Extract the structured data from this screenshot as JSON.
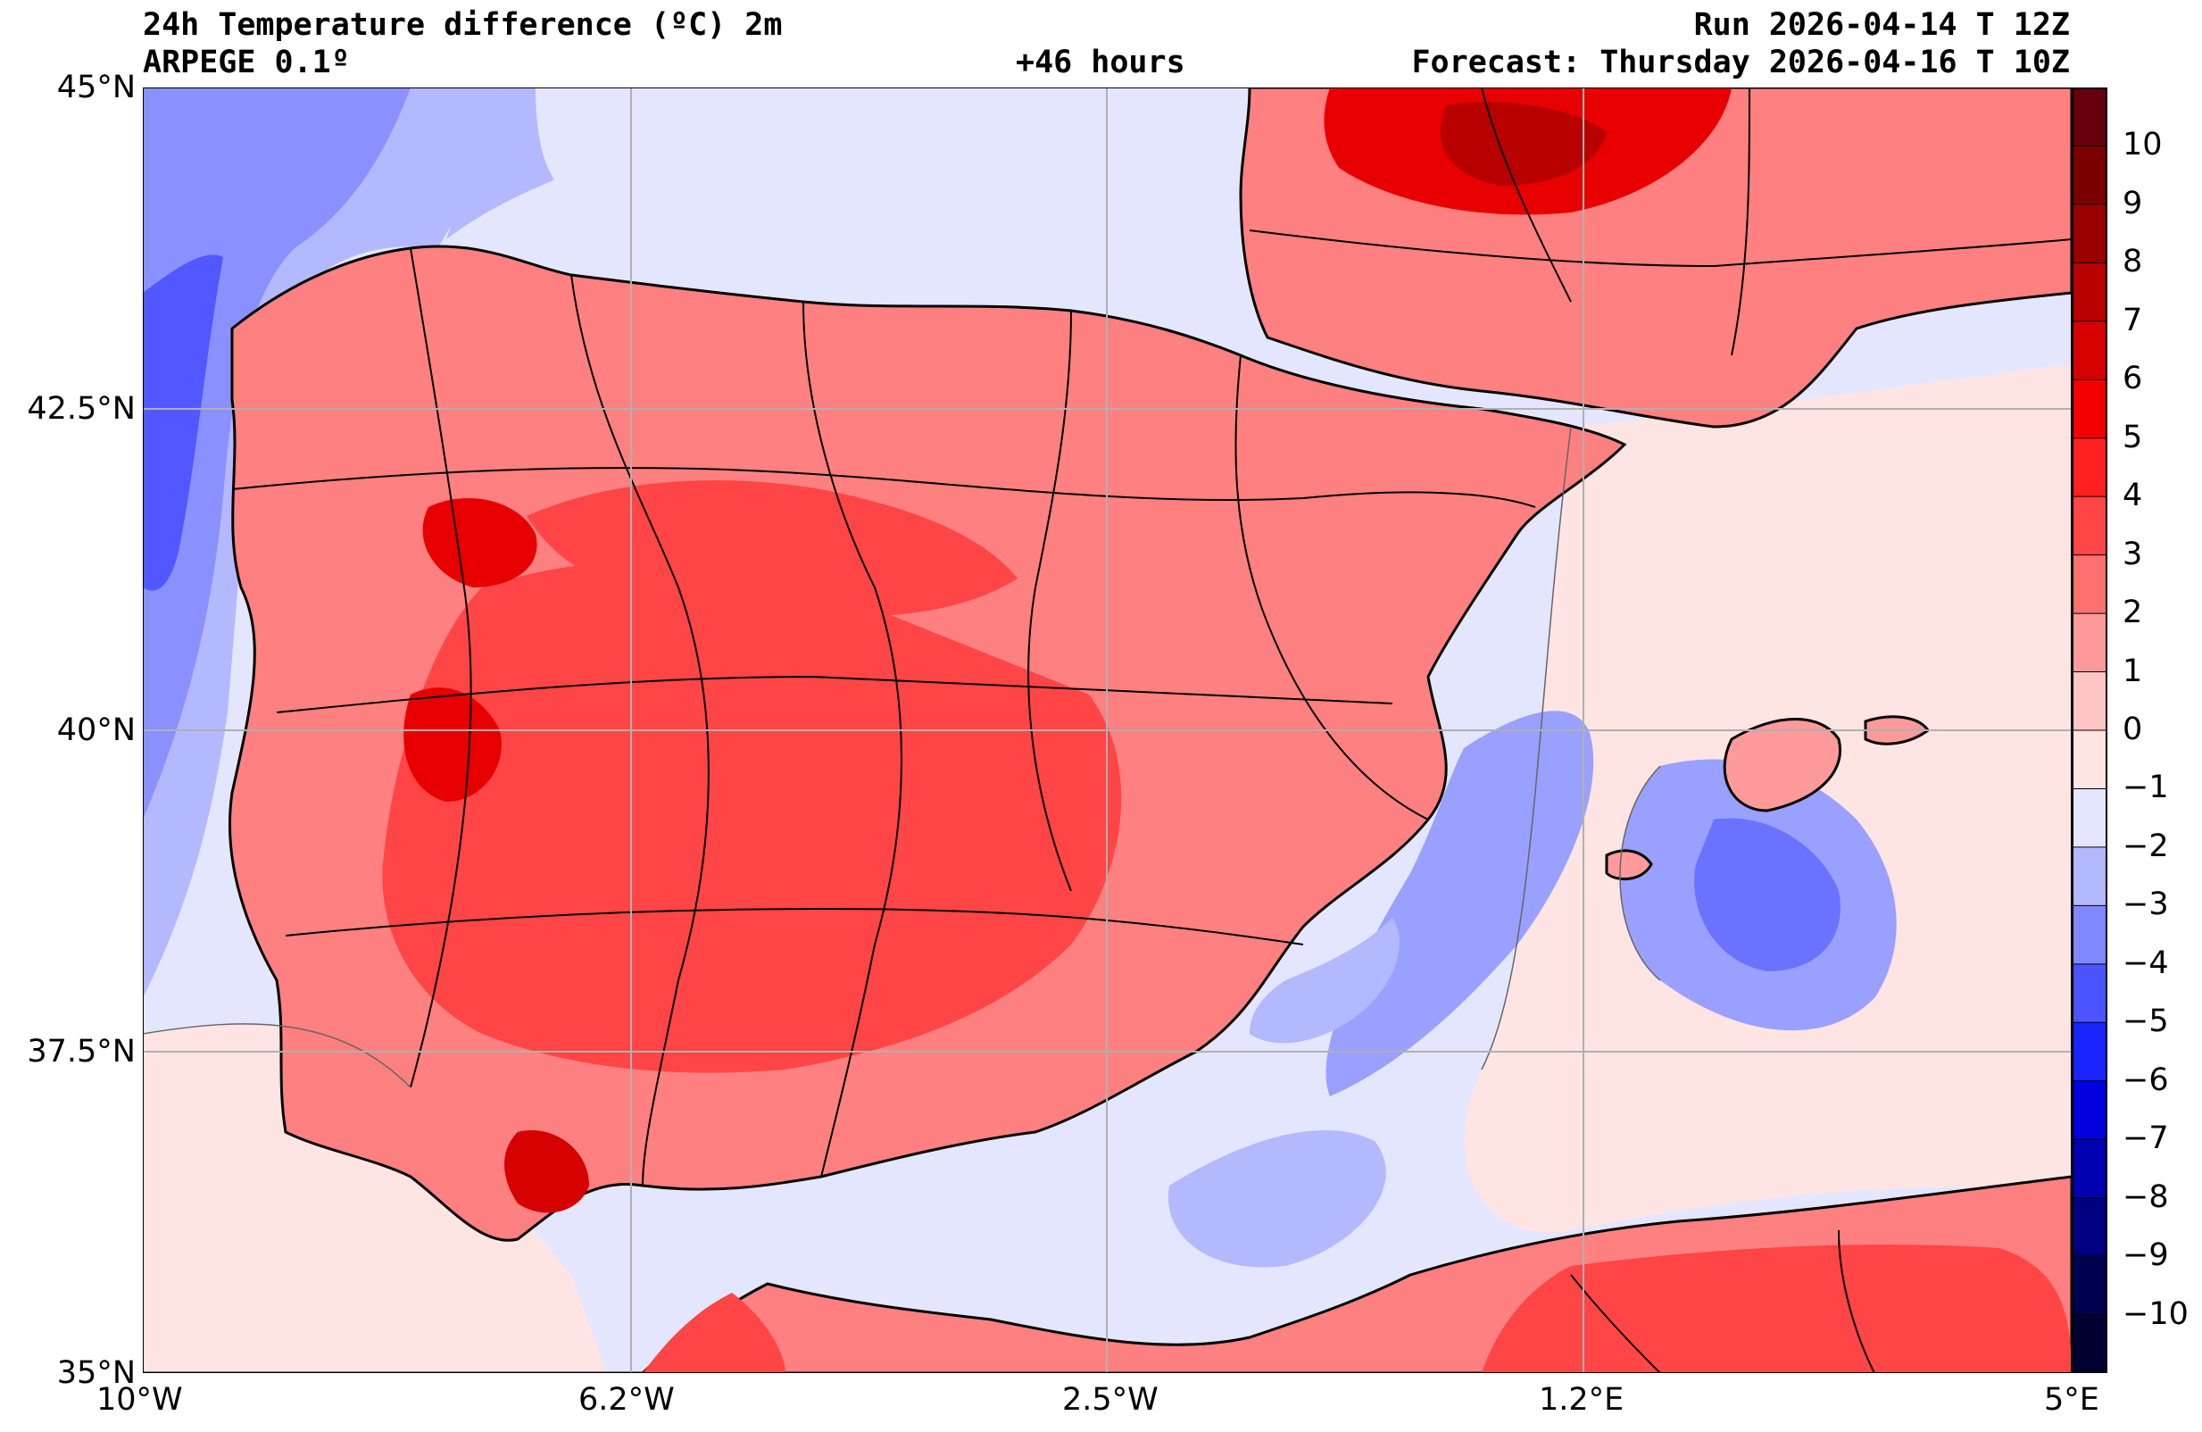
{
  "header": {
    "title": "24h Temperature difference (ºC) 2m",
    "model": "ARPEGE 0.1º",
    "lead_time": "+46 hours",
    "run": "Run 2026-04-14 T 12Z",
    "forecast": "Forecast: Thursday 2026-04-16 T 10Z"
  },
  "axes": {
    "y_ticks": [
      "45°N",
      "42.5°N",
      "40°N",
      "37.5°N",
      "35°N"
    ],
    "x_ticks": [
      "10°W",
      "6.2°W",
      "2.5°W",
      "1.2°E",
      "5°E"
    ]
  },
  "colorbar": {
    "labels": [
      "10",
      "9",
      "8",
      "7",
      "6",
      "5",
      "4",
      "3",
      "2",
      "1",
      "0",
      "−1",
      "−2",
      "−3",
      "−4",
      "−5",
      "−6",
      "−7",
      "−8",
      "−9",
      "−10"
    ],
    "colors": [
      "#67000d",
      "#7a0000",
      "#990000",
      "#b80000",
      "#d60000",
      "#f50000",
      "#ff2020",
      "#ff4545",
      "#ff7070",
      "#ff9a9a",
      "#ffc4c4",
      "#ffe4e4",
      "#e4e6ff",
      "#b4b8ff",
      "#8088ff",
      "#4a55ff",
      "#1a24ff",
      "#0000e0",
      "#0000b0",
      "#000080",
      "#000050",
      "#000030"
    ]
  },
  "map": {
    "colors": {
      "atlantic_cool": "#8a90ff",
      "atlantic_deep": "#5258ff",
      "sea_light": "#e4e6ff",
      "sea_pink": "#ffe4e4",
      "land_warm": "#ff8080",
      "land_hot": "#ff4040",
      "land_very_hot": "#e80000",
      "med_cool": "#9aa0ff",
      "border_line": "#000000",
      "grid_line": "#b0b0b0"
    }
  }
}
